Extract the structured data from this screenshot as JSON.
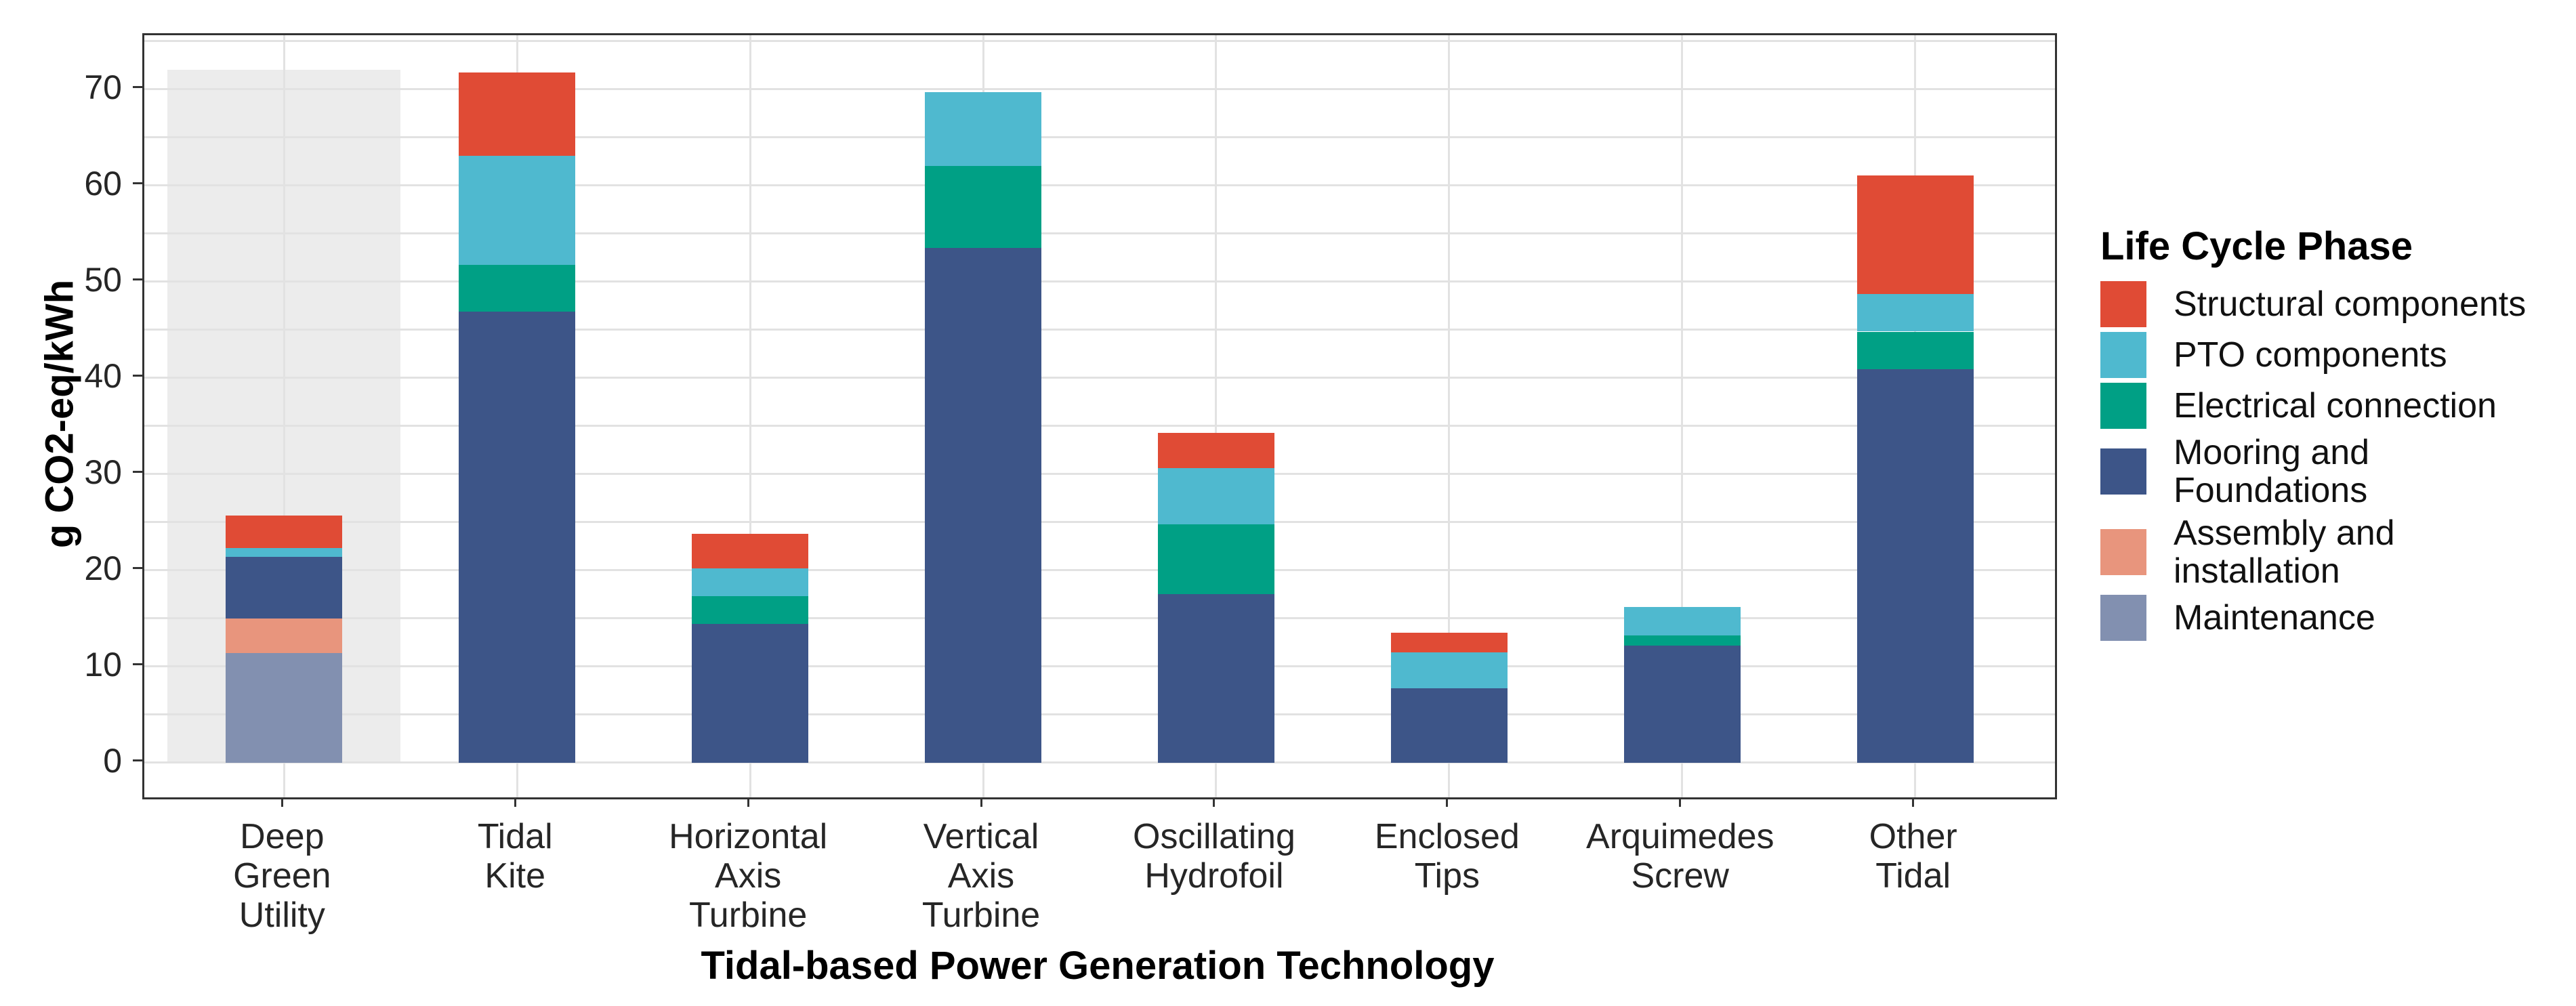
{
  "y_axis": {
    "title": "g CO2-eq/kWh",
    "ticks": [
      "0",
      "10",
      "20",
      "30",
      "40",
      "50",
      "60",
      "70"
    ]
  },
  "x_axis": {
    "title": "Tidal-based Power Generation Technology"
  },
  "legend": {
    "title": "Life Cycle Phase",
    "items": [
      {
        "label": "Structural components",
        "color": "#E04B35"
      },
      {
        "label": "PTO components",
        "color": "#4FB9CF"
      },
      {
        "label": "Electrical connection",
        "color": "#00A085"
      },
      {
        "label": "Mooring and Foundations",
        "color": "#3D5588"
      },
      {
        "label": "Assembly and\ninstallation",
        "color": "#E8957D"
      },
      {
        "label": "Maintenance",
        "color": "#8290B0"
      }
    ]
  },
  "chart_data": {
    "type": "bar",
    "stacked": true,
    "title": "",
    "xlabel": "Tidal-based Power Generation Technology",
    "ylabel": "g CO2-eq/kWh",
    "ylim": [
      0,
      72
    ],
    "y_major_step": 10,
    "y_minor_step": 5,
    "grid": true,
    "legend_position": "right",
    "legend_title": "Life Cycle Phase",
    "categories": [
      "Deep\nGreen\nUtility",
      "Tidal\nKite",
      "Horizontal\nAxis\nTurbine",
      "Vertical\nAxis\nTurbine",
      "Oscillating\nHydrofoil",
      "Enclosed\nTips",
      "Arquimedes\nScrew",
      "Other\nTidal"
    ],
    "series": [
      {
        "name": "Maintenance",
        "color": "#8290B0",
        "values": [
          11.4,
          0,
          0,
          0,
          0,
          0,
          0,
          0
        ]
      },
      {
        "name": "Assembly and installation",
        "color": "#E8957D",
        "values": [
          3.6,
          0,
          0,
          0,
          0,
          0,
          0,
          0
        ]
      },
      {
        "name": "Mooring and Foundations",
        "color": "#3D5588",
        "values": [
          6.4,
          46.9,
          14.4,
          53.5,
          17.5,
          7.7,
          12.2,
          40.9
        ]
      },
      {
        "name": "Electrical connection",
        "color": "#00A085",
        "values": [
          0,
          4.8,
          2.9,
          8.5,
          7.3,
          0,
          1.0,
          3.9
        ]
      },
      {
        "name": "PTO components",
        "color": "#4FB9CF",
        "values": [
          0.9,
          11.4,
          2.9,
          7.7,
          5.8,
          3.8,
          3.0,
          3.9
        ]
      },
      {
        "name": "Structural components",
        "color": "#E04B35",
        "values": [
          3.4,
          8.6,
          3.6,
          0,
          3.7,
          2.0,
          0,
          12.3
        ]
      }
    ],
    "totals": [
      25.7,
      71.7,
      23.8,
      69.7,
      34.3,
      13.5,
      16.2,
      61.0
    ],
    "highlight": {
      "category": "Deep Green Utility",
      "index": 0,
      "from": 0,
      "to": 72,
      "color": "#ECECEC"
    }
  }
}
